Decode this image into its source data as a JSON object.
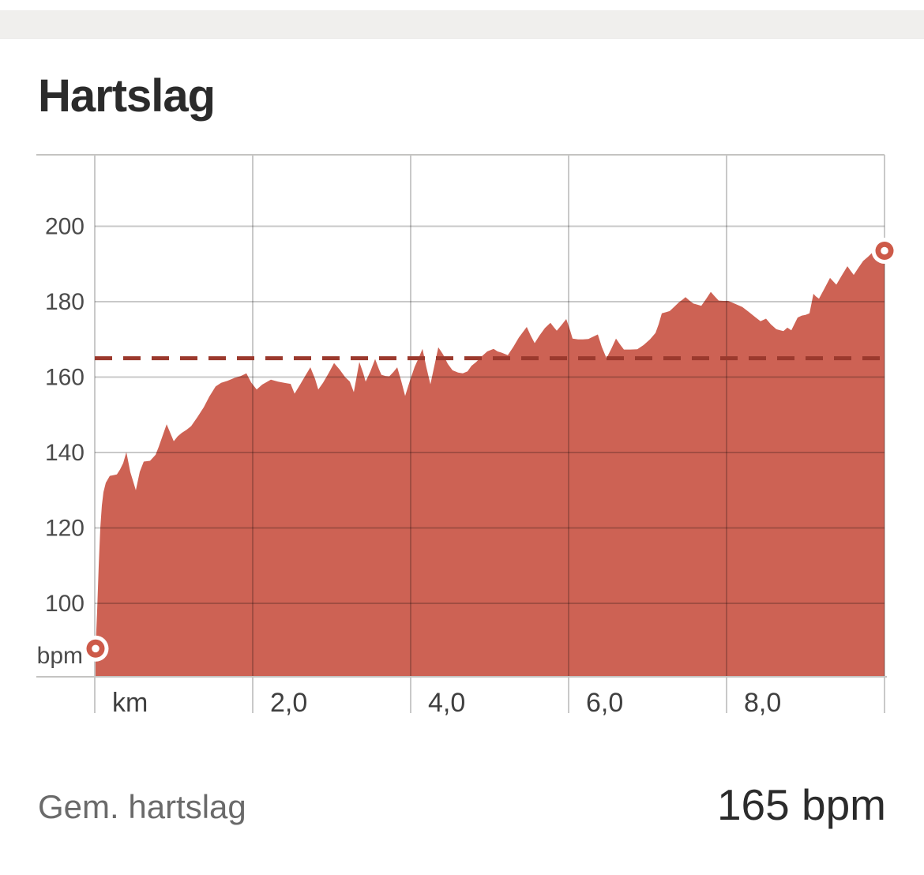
{
  "header": {
    "title": "Hartslag"
  },
  "footer": {
    "label": "Gem. hartslag",
    "value": "165 bpm"
  },
  "chart_data": {
    "type": "area",
    "title": "Hartslag",
    "xlabel": "km",
    "ylabel": "bpm",
    "x_unit_label": "km",
    "y_unit_label": "bpm",
    "x_range": [
      0,
      10
    ],
    "ylim": [
      81,
      218
    ],
    "grid": true,
    "average_bpm": 165,
    "average_value_label": "165 bpm",
    "y_ticks": [
      {
        "bpm": 100,
        "label": "100"
      },
      {
        "bpm": 120,
        "label": "120"
      },
      {
        "bpm": 140,
        "label": "140"
      },
      {
        "bpm": 160,
        "label": "160"
      },
      {
        "bpm": 180,
        "label": "180"
      },
      {
        "bpm": 200,
        "label": "200"
      }
    ],
    "x_ticks": [
      {
        "km": 0,
        "label": "km"
      },
      {
        "km": 2,
        "label": "2,0"
      },
      {
        "km": 4,
        "label": "4,0"
      },
      {
        "km": 6,
        "label": "6,0"
      },
      {
        "km": 8,
        "label": "8,0"
      },
      {
        "km": 10,
        "label": ""
      }
    ],
    "colors": {
      "fill": "#cd6254",
      "marker": "#cd5a49",
      "marker_hole": "#ffffff",
      "avg_line": "#9b392d",
      "grid": "rgba(0,0,0,0.21)",
      "border": "#c5c4c2",
      "y_tick_text": "#4b4b4b",
      "x_tick_text": "#3f3f3f"
    },
    "points": [
      [
        0.01,
        88
      ],
      [
        0.03,
        98
      ],
      [
        0.05,
        110
      ],
      [
        0.07,
        120
      ],
      [
        0.09,
        126
      ],
      [
        0.11,
        129.5
      ],
      [
        0.14,
        132
      ],
      [
        0.19,
        133.8
      ],
      [
        0.24,
        134
      ],
      [
        0.28,
        134.2
      ],
      [
        0.32,
        135.5
      ],
      [
        0.36,
        137.2
      ],
      [
        0.4,
        140.1
      ],
      [
        0.45,
        134.8
      ],
      [
        0.52,
        130
      ],
      [
        0.57,
        134.9
      ],
      [
        0.62,
        137.6
      ],
      [
        0.7,
        137.8
      ],
      [
        0.77,
        139.4
      ],
      [
        0.81,
        141.5
      ],
      [
        0.86,
        144.5
      ],
      [
        0.91,
        147.5
      ],
      [
        0.95,
        145.5
      ],
      [
        1.0,
        143
      ],
      [
        1.05,
        144.3
      ],
      [
        1.1,
        145.2
      ],
      [
        1.16,
        146
      ],
      [
        1.22,
        147
      ],
      [
        1.3,
        149.4
      ],
      [
        1.38,
        152
      ],
      [
        1.45,
        154.8
      ],
      [
        1.53,
        157.5
      ],
      [
        1.6,
        158.5
      ],
      [
        1.68,
        159
      ],
      [
        1.77,
        159.8
      ],
      [
        1.85,
        160.3
      ],
      [
        1.92,
        161
      ],
      [
        1.98,
        158.6
      ],
      [
        2.05,
        156.7
      ],
      [
        2.12,
        158
      ],
      [
        2.23,
        159.3
      ],
      [
        2.32,
        158.8
      ],
      [
        2.42,
        158.4
      ],
      [
        2.48,
        158.2
      ],
      [
        2.53,
        155.6
      ],
      [
        2.6,
        158
      ],
      [
        2.67,
        160.5
      ],
      [
        2.73,
        162.6
      ],
      [
        2.79,
        159.5
      ],
      [
        2.83,
        156.7
      ],
      [
        2.89,
        158.5
      ],
      [
        2.96,
        161
      ],
      [
        3.03,
        163.7
      ],
      [
        3.1,
        162
      ],
      [
        3.17,
        160
      ],
      [
        3.23,
        158.8
      ],
      [
        3.28,
        156
      ],
      [
        3.35,
        164
      ],
      [
        3.4,
        161
      ],
      [
        3.43,
        158.8
      ],
      [
        3.49,
        161.5
      ],
      [
        3.55,
        164.8
      ],
      [
        3.6,
        162
      ],
      [
        3.63,
        160.6
      ],
      [
        3.68,
        160.3
      ],
      [
        3.73,
        160.2
      ],
      [
        3.78,
        161.3
      ],
      [
        3.83,
        162.6
      ],
      [
        3.88,
        159
      ],
      [
        3.93,
        155
      ],
      [
        3.99,
        159
      ],
      [
        4.05,
        162.7
      ],
      [
        4.1,
        165
      ],
      [
        4.15,
        167.5
      ],
      [
        4.2,
        162.5
      ],
      [
        4.25,
        158.1
      ],
      [
        4.3,
        163
      ],
      [
        4.35,
        167.9
      ],
      [
        4.41,
        166
      ],
      [
        4.47,
        163.5
      ],
      [
        4.53,
        161.8
      ],
      [
        4.6,
        161.2
      ],
      [
        4.66,
        161
      ],
      [
        4.72,
        161.5
      ],
      [
        4.77,
        163
      ],
      [
        4.83,
        164
      ],
      [
        4.9,
        165.5
      ],
      [
        4.97,
        166.8
      ],
      [
        5.05,
        167.5
      ],
      [
        5.1,
        166.8
      ],
      [
        5.15,
        166.5
      ],
      [
        5.23,
        165.8
      ],
      [
        5.3,
        168
      ],
      [
        5.37,
        170.5
      ],
      [
        5.47,
        173.3
      ],
      [
        5.52,
        171
      ],
      [
        5.57,
        169
      ],
      [
        5.63,
        171
      ],
      [
        5.7,
        173
      ],
      [
        5.77,
        174.4
      ],
      [
        5.81,
        173.3
      ],
      [
        5.85,
        172.3
      ],
      [
        5.91,
        173.8
      ],
      [
        5.97,
        175.4
      ],
      [
        6.01,
        173
      ],
      [
        6.05,
        170.2
      ],
      [
        6.12,
        170
      ],
      [
        6.18,
        170
      ],
      [
        6.25,
        170.1
      ],
      [
        6.31,
        170.7
      ],
      [
        6.37,
        171.3
      ],
      [
        6.42,
        168
      ],
      [
        6.48,
        165
      ],
      [
        6.54,
        167.5
      ],
      [
        6.6,
        170.2
      ],
      [
        6.65,
        168.7
      ],
      [
        6.7,
        167.3
      ],
      [
        6.78,
        167.3
      ],
      [
        6.87,
        167.4
      ],
      [
        6.95,
        168.5
      ],
      [
        7.03,
        170
      ],
      [
        7.1,
        171.7
      ],
      [
        7.14,
        174
      ],
      [
        7.18,
        176.9
      ],
      [
        7.23,
        177.2
      ],
      [
        7.28,
        177.5
      ],
      [
        7.34,
        178.7
      ],
      [
        7.4,
        179.9
      ],
      [
        7.44,
        180.5
      ],
      [
        7.48,
        181.2
      ],
      [
        7.53,
        180.3
      ],
      [
        7.58,
        179.5
      ],
      [
        7.63,
        179.2
      ],
      [
        7.68,
        178.9
      ],
      [
        7.74,
        180.7
      ],
      [
        7.8,
        182.6
      ],
      [
        7.85,
        181.4
      ],
      [
        7.9,
        180.3
      ],
      [
        7.96,
        180.2
      ],
      [
        8.02,
        180.2
      ],
      [
        8.1,
        179.5
      ],
      [
        8.2,
        178.6
      ],
      [
        8.28,
        177.3
      ],
      [
        8.37,
        175.8
      ],
      [
        8.43,
        174.8
      ],
      [
        8.5,
        175.5
      ],
      [
        8.56,
        174
      ],
      [
        8.63,
        172.7
      ],
      [
        8.68,
        172.4
      ],
      [
        8.72,
        172.2
      ],
      [
        8.77,
        173.1
      ],
      [
        8.82,
        172.4
      ],
      [
        8.9,
        175.8
      ],
      [
        8.95,
        176.3
      ],
      [
        9.0,
        176.5
      ],
      [
        9.05,
        176.9
      ],
      [
        9.1,
        182.1
      ],
      [
        9.13,
        181.4
      ],
      [
        9.17,
        180.8
      ],
      [
        9.24,
        183.5
      ],
      [
        9.31,
        186.3
      ],
      [
        9.35,
        185.4
      ],
      [
        9.39,
        184.5
      ],
      [
        9.46,
        187
      ],
      [
        9.53,
        189.4
      ],
      [
        9.57,
        188.2
      ],
      [
        9.61,
        187.1
      ],
      [
        9.67,
        189
      ],
      [
        9.73,
        190.8
      ],
      [
        9.79,
        191.9
      ],
      [
        9.84,
        192.9
      ],
      [
        9.88,
        191.8
      ],
      [
        9.92,
        190.6
      ],
      [
        9.96,
        191.8
      ],
      [
        10.0,
        193.5
      ]
    ],
    "start_point": {
      "km": 0.01,
      "bpm": 88
    },
    "end_point": {
      "km": 10.0,
      "bpm": 193.5
    }
  }
}
